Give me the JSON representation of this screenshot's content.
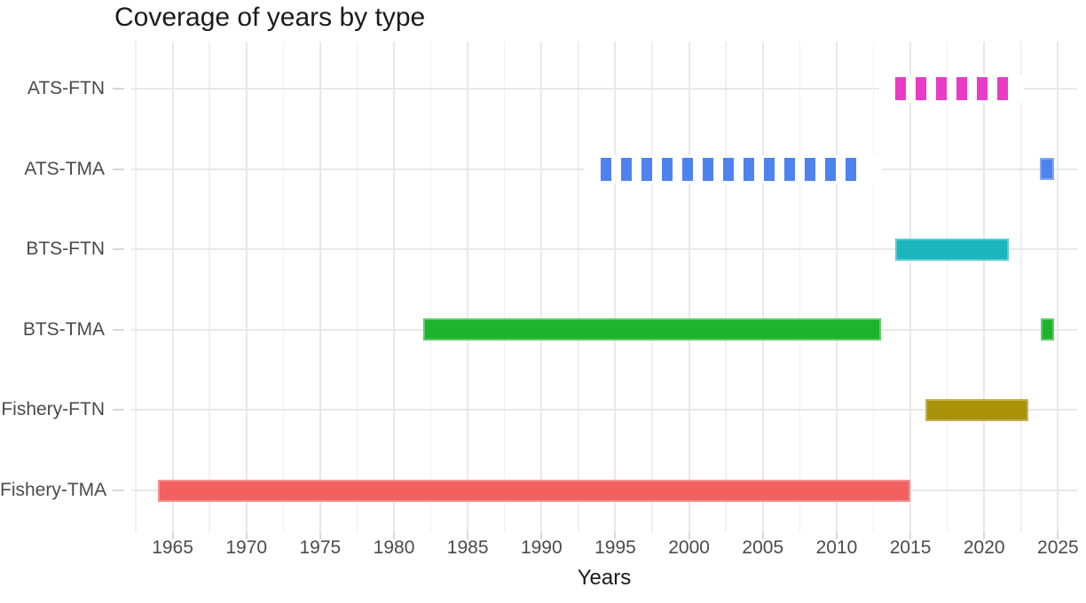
{
  "chart_data": {
    "type": "bar",
    "subtype": "timeline-range (year coverage by category)",
    "title": "Coverage of years by type",
    "xlabel": "Years",
    "ylabel": "",
    "grid": true,
    "legend": false,
    "x_axis": {
      "min": 1962.2,
      "max": 2026.3,
      "breaks": [
        1965,
        1970,
        1975,
        1980,
        1985,
        1990,
        1995,
        2000,
        2005,
        2010,
        2015,
        2020,
        2025
      ],
      "minor_step": 2.5
    },
    "categories": [
      "ATS-FTN",
      "ATS-TMA",
      "BTS-FTN",
      "BTS-TMA",
      "Fishery-FTN",
      "Fishery-TMA"
    ],
    "series": [
      {
        "name": "ATS-FTN",
        "color": "#e93bc6",
        "segments": [
          {
            "start": 2014,
            "end": 2021.6,
            "style": "dashed"
          }
        ]
      },
      {
        "name": "ATS-TMA",
        "color": "#4e82ee",
        "segments": [
          {
            "start": 1994,
            "end": 2012,
            "style": "dashed"
          },
          {
            "start": 2023.8,
            "end": 2024.75,
            "style": "solid"
          }
        ]
      },
      {
        "name": "BTS-FTN",
        "color": "#1ab5bd",
        "segments": [
          {
            "start": 2014,
            "end": 2021.65,
            "style": "solid"
          }
        ]
      },
      {
        "name": "BTS-TMA",
        "color": "#1eb32c",
        "segments": [
          {
            "start": 1982,
            "end": 2013,
            "style": "solid"
          },
          {
            "start": 2023.85,
            "end": 2024.75,
            "style": "solid"
          }
        ]
      },
      {
        "name": "Fishery-FTN",
        "color": "#a99208",
        "segments": [
          {
            "start": 2016,
            "end": 2023,
            "style": "solid"
          }
        ]
      },
      {
        "name": "Fishery-TMA",
        "color": "#f26060",
        "segments": [
          {
            "start": 1964,
            "end": 2015,
            "style": "solid"
          }
        ]
      }
    ]
  }
}
